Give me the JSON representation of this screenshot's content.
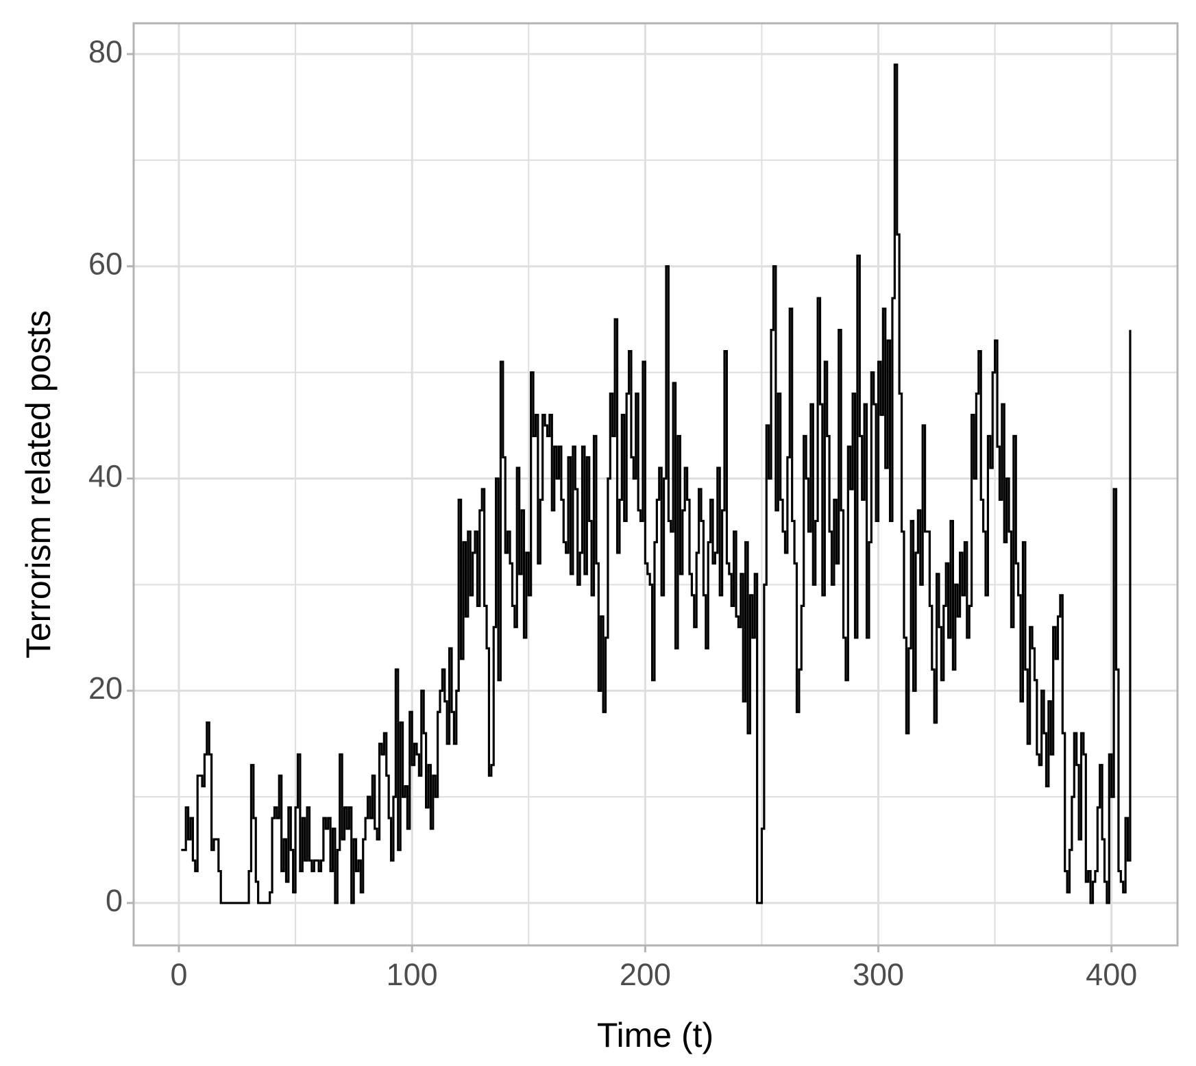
{
  "chart_data": {
    "type": "step",
    "x_label": "Time (t)",
    "y_label": "Terrorism related posts",
    "xlim": [
      -19.4,
      428.3
    ],
    "ylim": [
      -4,
      82.9
    ],
    "xticks": [
      0,
      100,
      200,
      300,
      400
    ],
    "yticks": [
      0,
      20,
      40,
      60,
      80
    ],
    "grid": true,
    "x": [
      1,
      2,
      3,
      4,
      5,
      6,
      7,
      8,
      9,
      10,
      11,
      12,
      13,
      14,
      15,
      16,
      17,
      18,
      19,
      20,
      21,
      22,
      23,
      24,
      25,
      26,
      27,
      28,
      29,
      30,
      31,
      32,
      33,
      34,
      35,
      36,
      37,
      38,
      39,
      40,
      41,
      42,
      43,
      44,
      45,
      46,
      47,
      48,
      49,
      50,
      51,
      52,
      53,
      54,
      55,
      56,
      57,
      58,
      59,
      60,
      61,
      62,
      63,
      64,
      65,
      66,
      67,
      68,
      69,
      70,
      71,
      72,
      73,
      74,
      75,
      76,
      77,
      78,
      79,
      80,
      81,
      82,
      83,
      84,
      85,
      86,
      87,
      88,
      89,
      90,
      91,
      92,
      93,
      94,
      95,
      96,
      97,
      98,
      99,
      100,
      101,
      102,
      103,
      104,
      105,
      106,
      107,
      108,
      109,
      110,
      111,
      112,
      113,
      114,
      115,
      116,
      117,
      118,
      119,
      120,
      121,
      122,
      123,
      124,
      125,
      126,
      127,
      128,
      129,
      130,
      131,
      132,
      133,
      134,
      135,
      136,
      137,
      138,
      139,
      140,
      141,
      142,
      143,
      144,
      145,
      146,
      147,
      148,
      149,
      150,
      151,
      152,
      153,
      154,
      155,
      156,
      157,
      158,
      159,
      160,
      161,
      162,
      163,
      164,
      165,
      166,
      167,
      168,
      169,
      170,
      171,
      172,
      173,
      174,
      175,
      176,
      177,
      178,
      179,
      180,
      181,
      182,
      183,
      184,
      185,
      186,
      187,
      188,
      189,
      190,
      191,
      192,
      193,
      194,
      195,
      196,
      197,
      198,
      199,
      200,
      201,
      202,
      203,
      204,
      205,
      206,
      207,
      208,
      209,
      210,
      211,
      212,
      213,
      214,
      215,
      216,
      217,
      218,
      219,
      220,
      221,
      222,
      223,
      224,
      225,
      226,
      227,
      228,
      229,
      230,
      231,
      232,
      233,
      234,
      235,
      236,
      237,
      238,
      239,
      240,
      241,
      242,
      243,
      244,
      245,
      246,
      247,
      248,
      249,
      250,
      251,
      252,
      253,
      254,
      255,
      256,
      257,
      258,
      259,
      260,
      261,
      262,
      263,
      264,
      265,
      266,
      267,
      268,
      269,
      270,
      271,
      272,
      273,
      274,
      275,
      276,
      277,
      278,
      279,
      280,
      281,
      282,
      283,
      284,
      285,
      286,
      287,
      288,
      289,
      290,
      291,
      292,
      293,
      294,
      295,
      296,
      297,
      298,
      299,
      300,
      301,
      302,
      303,
      304,
      305,
      306,
      307,
      308,
      309,
      310,
      311,
      312,
      313,
      314,
      315,
      316,
      317,
      318,
      319,
      320,
      321,
      322,
      323,
      324,
      325,
      326,
      327,
      328,
      329,
      330,
      331,
      332,
      333,
      334,
      335,
      336,
      337,
      338,
      339,
      340,
      341,
      342,
      343,
      344,
      345,
      346,
      347,
      348,
      349,
      350,
      351,
      352,
      353,
      354,
      355,
      356,
      357,
      358,
      359,
      360,
      361,
      362,
      363,
      364,
      365,
      366,
      367,
      368,
      369,
      370,
      371,
      372,
      373,
      374,
      375,
      376,
      377,
      378,
      379,
      380,
      381,
      382,
      383,
      384,
      385,
      386,
      387,
      388,
      389,
      390,
      391,
      392,
      393,
      394,
      395,
      396,
      397,
      398,
      399,
      400,
      401,
      402,
      403,
      404,
      405,
      406,
      407,
      408
    ],
    "series": [
      {
        "color": "#000000",
        "values": [
          5,
          5,
          9,
          6,
          8,
          4,
          3,
          12,
          12,
          11,
          14,
          17,
          14,
          5,
          6,
          6,
          3,
          0,
          0,
          0,
          0,
          0,
          0,
          0,
          0,
          0,
          0,
          0,
          0,
          3,
          13,
          8,
          2,
          0,
          0,
          0,
          0,
          0,
          1,
          8,
          9,
          8,
          12,
          3,
          6,
          2,
          9,
          5,
          1,
          9,
          14,
          3,
          8,
          4,
          9,
          4,
          3,
          4,
          4,
          3,
          4,
          8,
          7,
          8,
          3,
          7,
          0,
          5,
          14,
          6,
          9,
          7,
          9,
          0,
          6,
          3,
          4,
          1,
          6,
          8,
          10,
          8,
          12,
          7,
          6,
          15,
          14,
          16,
          12,
          8,
          4,
          10,
          22,
          5,
          17,
          10,
          11,
          7,
          18,
          13,
          15,
          14,
          12,
          20,
          16,
          9,
          13,
          7,
          12,
          10,
          18,
          20,
          22,
          19,
          15,
          24,
          18,
          15,
          20,
          38,
          23,
          34,
          27,
          35,
          29,
          33,
          35,
          28,
          37,
          39,
          28,
          24,
          12,
          13,
          26,
          40,
          21,
          51,
          42,
          33,
          35,
          32,
          28,
          26,
          41,
          31,
          37,
          25,
          33,
          29,
          50,
          44,
          46,
          32,
          38,
          46,
          45,
          44,
          46,
          37,
          43,
          40,
          43,
          38,
          34,
          33,
          42,
          31,
          43,
          39,
          30,
          33,
          43,
          31,
          42,
          36,
          29,
          44,
          32,
          20,
          27,
          18,
          25,
          40,
          48,
          44,
          55,
          33,
          38,
          46,
          36,
          48,
          52,
          42,
          40,
          48,
          37,
          36,
          51,
          32,
          31,
          30,
          21,
          34,
          38,
          41,
          29,
          40,
          60,
          36,
          35,
          49,
          24,
          44,
          31,
          37,
          41,
          38,
          31,
          29,
          26,
          33,
          39,
          36,
          29,
          24,
          34,
          38,
          32,
          33,
          41,
          29,
          37,
          52,
          32,
          31,
          28,
          35,
          27,
          26,
          31,
          19,
          34,
          16,
          29,
          25,
          31,
          0,
          0,
          7,
          30,
          45,
          40,
          54,
          60,
          37,
          48,
          38,
          35,
          33,
          42,
          56,
          36,
          32,
          18,
          22,
          28,
          44,
          40,
          35,
          47,
          30,
          36,
          57,
          47,
          29,
          51,
          44,
          35,
          30,
          38,
          32,
          54,
          37,
          25,
          21,
          43,
          39,
          48,
          25,
          61,
          44,
          38,
          47,
          25,
          34,
          50,
          47,
          36,
          51,
          46,
          56,
          41,
          53,
          36,
          57,
          79,
          63,
          48,
          35,
          25,
          16,
          24,
          36,
          20,
          33,
          37,
          30,
          45,
          35,
          35,
          28,
          22,
          17,
          31,
          26,
          21,
          28,
          32,
          25,
          36,
          22,
          30,
          27,
          33,
          29,
          34,
          25,
          28,
          46,
          40,
          48,
          52,
          38,
          35,
          29,
          44,
          41,
          50,
          53,
          43,
          38,
          47,
          34,
          40,
          35,
          26,
          44,
          32,
          29,
          19,
          34,
          22,
          15,
          26,
          24,
          21,
          14,
          13,
          20,
          16,
          11,
          19,
          14,
          26,
          23,
          27,
          29,
          16,
          3,
          1,
          5,
          10,
          16,
          13,
          6,
          16,
          14,
          2,
          3,
          0,
          2,
          3,
          9,
          13,
          6,
          2,
          0,
          14,
          10,
          39,
          22,
          3,
          2,
          1,
          8,
          4,
          54
        ]
      }
    ]
  }
}
